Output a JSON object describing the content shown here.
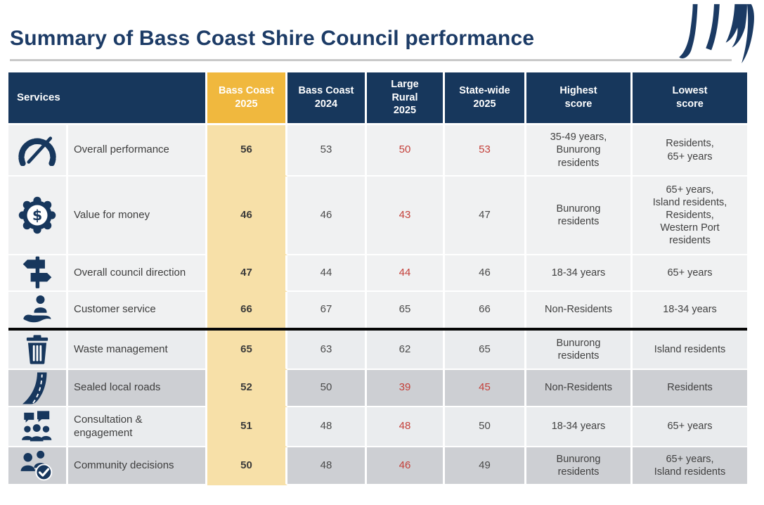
{
  "page": {
    "title": "Summary of Bass Coast Shire Council performance",
    "logo": "jws-monogram"
  },
  "table": {
    "columns": [
      "Services",
      "Bass Coast\n2025",
      "Bass Coast\n2024",
      "Large\nRural\n2025",
      "State-wide\n2025",
      "Highest\nscore",
      "Lowest\nscore"
    ],
    "divider_after_row": 4,
    "colors": {
      "header_navy": "#17375C",
      "header_amber": "#F0B83E",
      "highlight_amber": "#F7E0A8",
      "red_value": "#C4403A",
      "title_navy": "#1C3B66"
    },
    "rows": [
      {
        "icon": "gauge-icon",
        "service": "Overall performance",
        "values": {
          "bass_coast_2025": "56",
          "bass_coast_2024": "53",
          "large_rural_2025": "50",
          "state_wide_2025": "53"
        },
        "red": [
          "large_rural_2025",
          "state_wide_2025"
        ],
        "highest": "35-49 years,\nBunurong\nresidents",
        "lowest": "Residents,\n65+ years",
        "shade": "a"
      },
      {
        "icon": "dollar-gear-icon",
        "service": "Value for money",
        "values": {
          "bass_coast_2025": "46",
          "bass_coast_2024": "46",
          "large_rural_2025": "43",
          "state_wide_2025": "47"
        },
        "red": [
          "large_rural_2025"
        ],
        "highest": "Bunurong\nresidents",
        "lowest": "65+ years,\nIsland residents,\nResidents,\nWestern Port\nresidents",
        "shade": "a"
      },
      {
        "icon": "signpost-icon",
        "service": "Overall council direction",
        "values": {
          "bass_coast_2025": "47",
          "bass_coast_2024": "44",
          "large_rural_2025": "44",
          "state_wide_2025": "46"
        },
        "red": [
          "large_rural_2025"
        ],
        "highest": "18-34 years",
        "lowest": "65+ years",
        "shade": "a"
      },
      {
        "icon": "customer-service-icon",
        "service": "Customer service",
        "values": {
          "bass_coast_2025": "66",
          "bass_coast_2024": "67",
          "large_rural_2025": "65",
          "state_wide_2025": "66"
        },
        "red": [],
        "highest": "Non-Residents",
        "lowest": "18-34 years",
        "shade": "a"
      },
      {
        "icon": "trash-icon",
        "service": "Waste management",
        "values": {
          "bass_coast_2025": "65",
          "bass_coast_2024": "63",
          "large_rural_2025": "62",
          "state_wide_2025": "65"
        },
        "red": [],
        "highest": "Bunurong\nresidents",
        "lowest": "Island residents",
        "shade": "b"
      },
      {
        "icon": "road-icon",
        "service": "Sealed local roads",
        "values": {
          "bass_coast_2025": "52",
          "bass_coast_2024": "50",
          "large_rural_2025": "39",
          "state_wide_2025": "45"
        },
        "red": [
          "large_rural_2025",
          "state_wide_2025"
        ],
        "highest": "Non-Residents",
        "lowest": "Residents",
        "shade": "c"
      },
      {
        "icon": "consultation-icon",
        "service": "Consultation &\nengagement",
        "values": {
          "bass_coast_2025": "51",
          "bass_coast_2024": "48",
          "large_rural_2025": "48",
          "state_wide_2025": "50"
        },
        "red": [
          "large_rural_2025"
        ],
        "highest": "18-34 years",
        "lowest": "65+ years",
        "shade": "b"
      },
      {
        "icon": "community-decisions-icon",
        "service": "Community decisions",
        "values": {
          "bass_coast_2025": "50",
          "bass_coast_2024": "48",
          "large_rural_2025": "46",
          "state_wide_2025": "49"
        },
        "red": [
          "large_rural_2025"
        ],
        "highest": "Bunurong\nresidents",
        "lowest": "65+ years,\nIsland residents",
        "shade": "c"
      }
    ]
  }
}
